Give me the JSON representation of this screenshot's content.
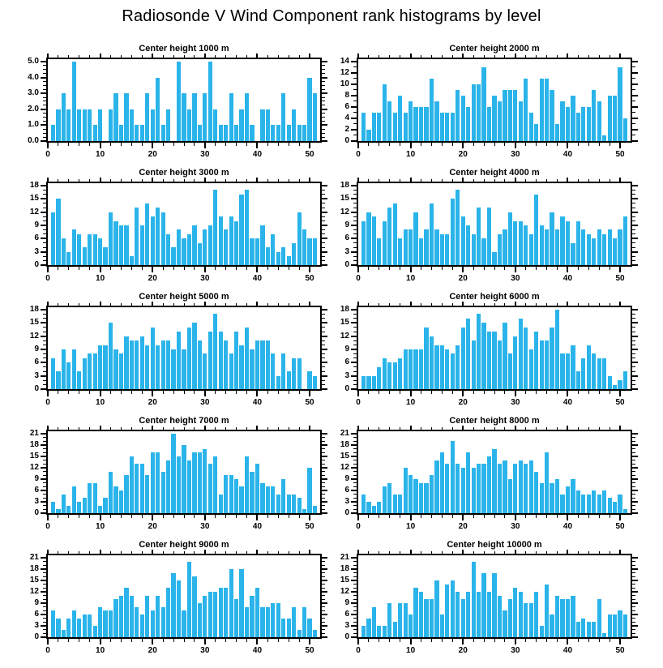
{
  "figure": {
    "title": "Radiosonde V Wind Component rank histograms by level",
    "bar_color": "#2ab4ea",
    "axis_color": "#000000",
    "background": "#ffffff",
    "layout": "5 rows x 2 columns",
    "grid": false,
    "legend": null
  },
  "chart_data": [
    {
      "type": "bar",
      "title": "Center height 1000 m",
      "x_description": "rank bin, consecutive integers starting at 1",
      "x_start": 1,
      "n_bins": 51,
      "values": [
        1,
        2,
        3,
        2,
        5,
        2,
        2,
        2,
        1,
        2,
        0,
        2,
        3,
        1,
        3,
        2,
        1,
        1,
        3,
        2,
        4,
        1,
        2,
        0,
        5,
        3,
        2,
        3,
        1,
        3,
        5,
        2,
        1,
        1,
        3,
        1,
        2,
        3,
        1,
        0,
        2,
        2,
        1,
        1,
        3,
        1,
        2,
        1,
        1,
        4,
        3
      ],
      "xlim": [
        0,
        52
      ],
      "xticks": [
        0,
        10,
        20,
        30,
        40,
        50
      ],
      "x_minor_step": 2,
      "ylim": [
        0,
        5
      ],
      "ytick_labels": [
        "0.0",
        "1.0",
        "2.0",
        "3.0",
        "4.0",
        "5.0"
      ],
      "ytick_values": [
        0,
        1,
        2,
        3,
        4,
        5
      ],
      "y_minor_divs": 4
    },
    {
      "type": "bar",
      "title": "Center height 2000 m",
      "x_description": "rank bin, consecutive integers starting at 1",
      "x_start": 1,
      "n_bins": 51,
      "values": [
        5,
        2,
        5,
        5,
        10,
        7,
        5,
        8,
        5,
        7,
        6,
        6,
        6,
        11,
        7,
        5,
        5,
        5,
        9,
        8,
        6,
        10,
        10,
        13,
        6,
        8,
        7,
        9,
        9,
        9,
        7,
        11,
        5,
        3,
        11,
        11,
        9,
        3,
        7,
        6,
        8,
        5,
        6,
        6,
        9,
        7,
        1,
        8,
        8,
        13,
        4
      ],
      "xlim": [
        0,
        52
      ],
      "xticks": [
        0,
        10,
        20,
        30,
        40,
        50
      ],
      "x_minor_step": 2,
      "ylim": [
        0,
        14
      ],
      "ytick_labels": [
        "0",
        "2",
        "4",
        "6",
        "8",
        "10",
        "12",
        "14"
      ],
      "ytick_values": [
        0,
        2,
        4,
        6,
        8,
        10,
        12,
        14
      ],
      "y_minor_divs": 2
    },
    {
      "type": "bar",
      "title": "Center height 3000 m",
      "x_description": "rank bin, consecutive integers starting at 1",
      "x_start": 1,
      "n_bins": 51,
      "values": [
        12,
        15,
        6,
        3,
        8,
        7,
        4,
        7,
        7,
        6,
        4,
        12,
        10,
        9,
        9,
        2,
        13,
        9,
        14,
        11,
        13,
        12,
        7,
        4,
        8,
        6,
        7,
        9,
        5,
        8,
        9,
        17,
        11,
        8,
        11,
        10,
        16,
        17,
        6,
        6,
        9,
        4,
        7,
        3,
        4,
        2,
        5,
        12,
        8,
        6,
        6
      ],
      "xlim": [
        0,
        52
      ],
      "xticks": [
        0,
        10,
        20,
        30,
        40,
        50
      ],
      "x_minor_step": 2,
      "ylim": [
        0,
        18
      ],
      "ytick_labels": [
        "0",
        "3",
        "6",
        "9",
        "12",
        "15",
        "18"
      ],
      "ytick_values": [
        0,
        3,
        6,
        9,
        12,
        15,
        18
      ],
      "y_minor_divs": 3
    },
    {
      "type": "bar",
      "title": "Center height 4000 m",
      "x_description": "rank bin, consecutive integers starting at 1",
      "x_start": 1,
      "n_bins": 51,
      "values": [
        10,
        12,
        11,
        6,
        10,
        13,
        14,
        6,
        8,
        8,
        12,
        6,
        8,
        14,
        8,
        7,
        7,
        15,
        17,
        11,
        9,
        7,
        13,
        6,
        13,
        3,
        7,
        8,
        12,
        10,
        10,
        9,
        7,
        16,
        9,
        8,
        12,
        8,
        11,
        10,
        5,
        10,
        8,
        7,
        6,
        8,
        7,
        8,
        6,
        8,
        11
      ],
      "xlim": [
        0,
        52
      ],
      "xticks": [
        0,
        10,
        20,
        30,
        40,
        50
      ],
      "x_minor_step": 2,
      "ylim": [
        0,
        18
      ],
      "ytick_labels": [
        "0",
        "3",
        "6",
        "9",
        "12",
        "15",
        "18"
      ],
      "ytick_values": [
        0,
        3,
        6,
        9,
        12,
        15,
        18
      ],
      "y_minor_divs": 3
    },
    {
      "type": "bar",
      "title": "Center height 5000 m",
      "x_description": "rank bin, consecutive integers starting at 1",
      "x_start": 1,
      "n_bins": 51,
      "values": [
        7,
        4,
        9,
        6,
        9,
        4,
        7,
        8,
        8,
        10,
        10,
        15,
        9,
        8,
        12,
        11,
        11,
        12,
        10,
        14,
        10,
        11,
        11,
        9,
        13,
        9,
        14,
        15,
        11,
        8,
        13,
        17,
        13,
        11,
        8,
        13,
        10,
        14,
        9,
        11,
        11,
        11,
        8,
        3,
        8,
        4,
        7,
        7,
        0,
        4,
        3
      ],
      "xlim": [
        0,
        52
      ],
      "xticks": [
        0,
        10,
        20,
        30,
        40,
        50
      ],
      "x_minor_step": 2,
      "ylim": [
        0,
        18
      ],
      "ytick_labels": [
        "0",
        "3",
        "6",
        "9",
        "12",
        "15",
        "18"
      ],
      "ytick_values": [
        0,
        3,
        6,
        9,
        12,
        15,
        18
      ],
      "y_minor_divs": 3
    },
    {
      "type": "bar",
      "title": "Center height 6000 m",
      "x_description": "rank bin, consecutive integers starting at 1",
      "x_start": 1,
      "n_bins": 51,
      "values": [
        3,
        3,
        3,
        5,
        7,
        6,
        6,
        7,
        9,
        9,
        9,
        9,
        14,
        12,
        10,
        10,
        9,
        8,
        10,
        14,
        16,
        11,
        17,
        15,
        13,
        13,
        11,
        15,
        8,
        12,
        16,
        14,
        9,
        13,
        11,
        11,
        14,
        18,
        8,
        8,
        10,
        4,
        7,
        10,
        8,
        7,
        7,
        3,
        1,
        2,
        4
      ],
      "xlim": [
        0,
        52
      ],
      "xticks": [
        0,
        10,
        20,
        30,
        40,
        50
      ],
      "x_minor_step": 2,
      "ylim": [
        0,
        18
      ],
      "ytick_labels": [
        "0",
        "3",
        "6",
        "9",
        "12",
        "15",
        "18"
      ],
      "ytick_values": [
        0,
        3,
        6,
        9,
        12,
        15,
        18
      ],
      "y_minor_divs": 3
    },
    {
      "type": "bar",
      "title": "Center height 7000 m",
      "x_description": "rank bin, consecutive integers starting at 1",
      "x_start": 1,
      "n_bins": 51,
      "values": [
        3,
        1,
        5,
        2,
        7,
        3,
        4,
        8,
        8,
        2,
        4,
        11,
        7,
        6,
        10,
        15,
        13,
        13,
        10,
        16,
        16,
        11,
        14,
        21,
        15,
        18,
        14,
        16,
        16,
        17,
        13,
        15,
        5,
        10,
        10,
        9,
        7,
        15,
        11,
        13,
        8,
        7,
        7,
        5,
        9,
        5,
        5,
        4,
        1,
        12,
        2
      ],
      "xlim": [
        0,
        52
      ],
      "xticks": [
        0,
        10,
        20,
        30,
        40,
        50
      ],
      "x_minor_step": 2,
      "ylim": [
        0,
        21
      ],
      "ytick_labels": [
        "0",
        "3",
        "6",
        "9",
        "12",
        "15",
        "18",
        "21"
      ],
      "ytick_values": [
        0,
        3,
        6,
        9,
        12,
        15,
        18,
        21
      ],
      "y_minor_divs": 3
    },
    {
      "type": "bar",
      "title": "Center height 8000 m",
      "x_description": "rank bin, consecutive integers starting at 1",
      "x_start": 1,
      "n_bins": 51,
      "values": [
        5,
        3,
        2,
        3,
        7,
        8,
        5,
        5,
        12,
        10,
        9,
        8,
        8,
        10,
        14,
        16,
        13,
        19,
        13,
        12,
        16,
        12,
        13,
        13,
        15,
        17,
        13,
        14,
        9,
        13,
        14,
        13,
        14,
        11,
        8,
        16,
        8,
        9,
        5,
        7,
        9,
        6,
        5,
        5,
        6,
        5,
        6,
        4,
        3,
        5,
        1
      ],
      "xlim": [
        0,
        52
      ],
      "xticks": [
        0,
        10,
        20,
        30,
        40,
        50
      ],
      "x_minor_step": 2,
      "ylim": [
        0,
        21
      ],
      "ytick_labels": [
        "0",
        "3",
        "6",
        "9",
        "12",
        "15",
        "18",
        "21"
      ],
      "ytick_values": [
        0,
        3,
        6,
        9,
        12,
        15,
        18,
        21
      ],
      "y_minor_divs": 3
    },
    {
      "type": "bar",
      "title": "Center height 9000 m",
      "x_description": "rank bin, consecutive integers starting at 1",
      "x_start": 1,
      "n_bins": 51,
      "values": [
        7,
        5,
        2,
        5,
        7,
        5,
        6,
        6,
        3,
        8,
        7,
        7,
        10,
        11,
        13,
        11,
        8,
        6,
        11,
        7,
        11,
        8,
        13,
        17,
        15,
        7,
        20,
        16,
        9,
        11,
        12,
        12,
        13,
        13,
        18,
        10,
        18,
        8,
        11,
        13,
        8,
        8,
        9,
        9,
        5,
        5,
        8,
        2,
        8,
        5,
        2
      ],
      "xlim": [
        0,
        52
      ],
      "xticks": [
        0,
        10,
        20,
        30,
        40,
        50
      ],
      "x_minor_step": 2,
      "ylim": [
        0,
        21
      ],
      "ytick_labels": [
        "0",
        "3",
        "6",
        "9",
        "12",
        "15",
        "18",
        "21"
      ],
      "ytick_values": [
        0,
        3,
        6,
        9,
        12,
        15,
        18,
        21
      ],
      "y_minor_divs": 3
    },
    {
      "type": "bar",
      "title": "Center height 10000 m",
      "x_description": "rank bin, consecutive integers starting at 1",
      "x_start": 1,
      "n_bins": 51,
      "values": [
        3,
        5,
        8,
        3,
        3,
        9,
        4,
        9,
        9,
        6,
        13,
        12,
        10,
        10,
        15,
        6,
        14,
        15,
        12,
        10,
        12,
        20,
        12,
        17,
        12,
        17,
        11,
        7,
        10,
        13,
        12,
        9,
        9,
        12,
        3,
        14,
        6,
        11,
        10,
        10,
        11,
        4,
        5,
        4,
        4,
        10,
        1,
        6,
        6,
        7,
        6
      ],
      "xlim": [
        0,
        52
      ],
      "xticks": [
        0,
        10,
        20,
        30,
        40,
        50
      ],
      "x_minor_step": 2,
      "ylim": [
        0,
        21
      ],
      "ytick_labels": [
        "0",
        "3",
        "6",
        "9",
        "12",
        "15",
        "18",
        "21"
      ],
      "ytick_values": [
        0,
        3,
        6,
        9,
        12,
        15,
        18,
        21
      ],
      "y_minor_divs": 3
    }
  ]
}
